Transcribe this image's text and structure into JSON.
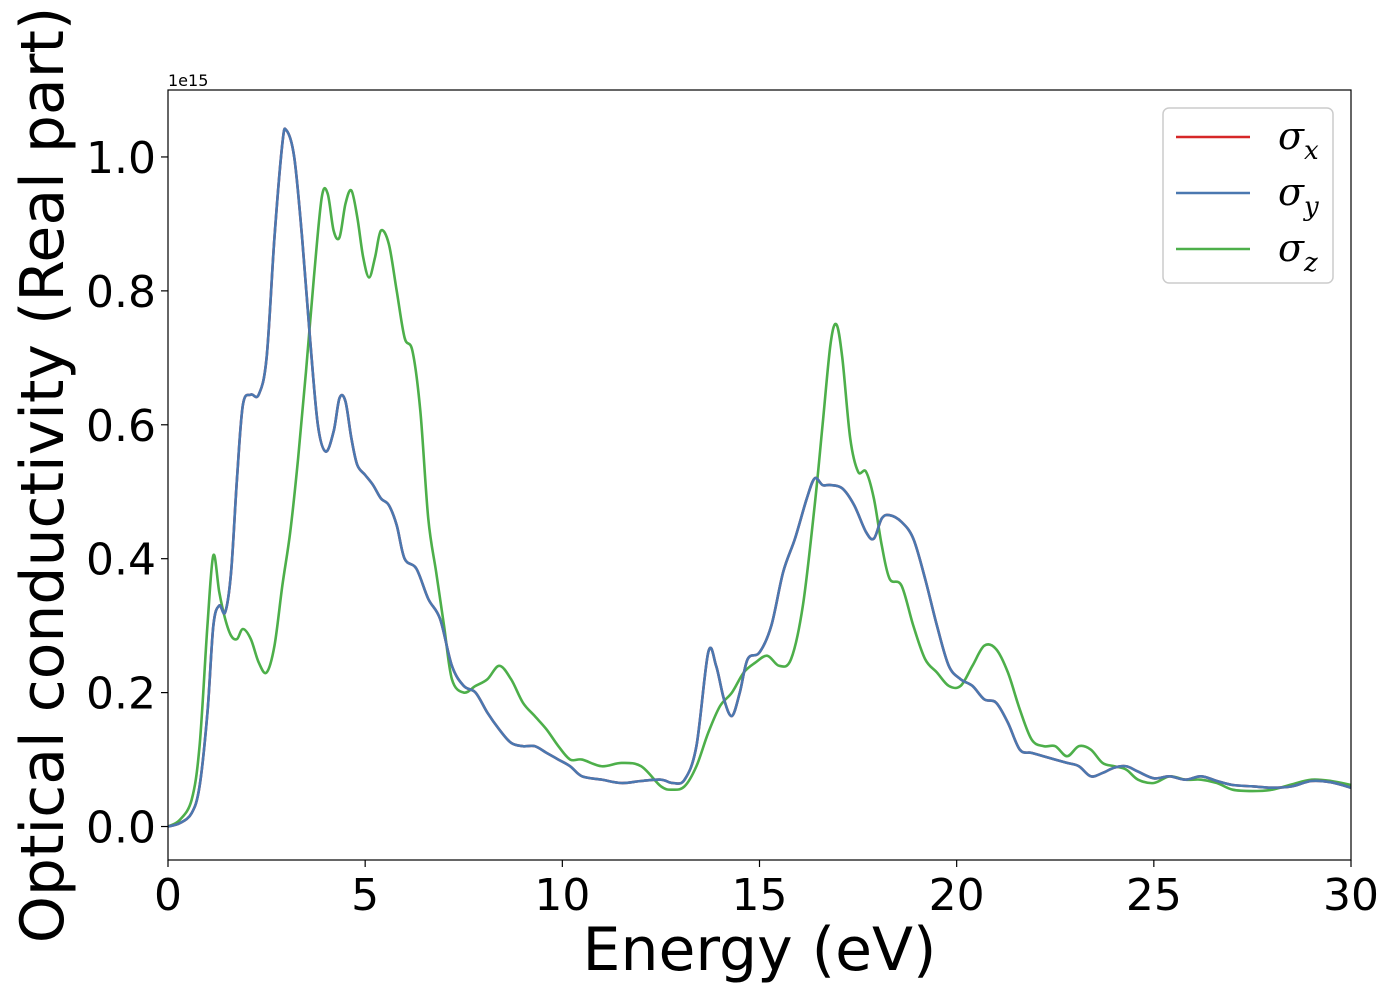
{
  "chart_data": {
    "type": "line",
    "xlabel": "Energy (eV)",
    "ylabel": "Optical conductivity (Real part)",
    "y_offset_label": "1e15",
    "xlim": [
      0,
      30
    ],
    "ylim": [
      -0.05,
      1.1
    ],
    "xticks": [
      0,
      5,
      10,
      15,
      20,
      25,
      30
    ],
    "xtick_labels": [
      "0",
      "5",
      "10",
      "15",
      "20",
      "25",
      "30"
    ],
    "yticks": [
      0.0,
      0.2,
      0.4,
      0.6,
      0.8,
      1.0
    ],
    "ytick_labels": [
      "0.0",
      "0.2",
      "0.4",
      "0.6",
      "0.8",
      "1.0"
    ],
    "grid": false,
    "legend_position": "top-right",
    "series": [
      {
        "name": "σ_x",
        "symbol": "σ",
        "subscript": "x",
        "color": "#d62728",
        "x": [
          0,
          0.3,
          0.6,
          0.8,
          1.0,
          1.15,
          1.3,
          1.45,
          1.6,
          1.75,
          1.9,
          2.1,
          2.3,
          2.5,
          2.7,
          2.9,
          3.0,
          3.2,
          3.4,
          3.6,
          3.8,
          4.0,
          4.2,
          4.35,
          4.5,
          4.65,
          4.8,
          5.0,
          5.2,
          5.4,
          5.6,
          5.8,
          6.0,
          6.3,
          6.6,
          6.9,
          7.2,
          7.5,
          7.8,
          8.1,
          8.4,
          8.7,
          9.0,
          9.3,
          9.6,
          9.9,
          10.2,
          10.5,
          11.0,
          11.5,
          12.0,
          12.5,
          12.8,
          13.1,
          13.4,
          13.7,
          13.9,
          14.1,
          14.3,
          14.5,
          14.7,
          15.0,
          15.3,
          15.6,
          15.9,
          16.2,
          16.4,
          16.6,
          16.8,
          17.1,
          17.4,
          17.7,
          17.9,
          18.1,
          18.3,
          18.6,
          18.9,
          19.2,
          19.5,
          19.8,
          20.1,
          20.4,
          20.7,
          21.0,
          21.3,
          21.6,
          21.9,
          22.2,
          22.5,
          22.8,
          23.1,
          23.4,
          23.7,
          24.0,
          24.3,
          24.6,
          25.0,
          25.4,
          25.8,
          26.2,
          26.6,
          27.0,
          27.5,
          28.0,
          28.5,
          29.0,
          29.5,
          30.0
        ],
        "y": [
          0.0,
          0.005,
          0.02,
          0.06,
          0.17,
          0.3,
          0.33,
          0.32,
          0.38,
          0.52,
          0.63,
          0.645,
          0.645,
          0.7,
          0.88,
          1.02,
          1.04,
          1.0,
          0.88,
          0.73,
          0.6,
          0.56,
          0.59,
          0.64,
          0.635,
          0.58,
          0.54,
          0.525,
          0.51,
          0.49,
          0.48,
          0.45,
          0.4,
          0.385,
          0.34,
          0.31,
          0.24,
          0.21,
          0.2,
          0.17,
          0.145,
          0.125,
          0.12,
          0.12,
          0.11,
          0.1,
          0.09,
          0.075,
          0.07,
          0.065,
          0.068,
          0.07,
          0.065,
          0.07,
          0.12,
          0.26,
          0.24,
          0.19,
          0.165,
          0.2,
          0.25,
          0.26,
          0.3,
          0.38,
          0.43,
          0.49,
          0.52,
          0.51,
          0.51,
          0.505,
          0.48,
          0.44,
          0.43,
          0.46,
          0.465,
          0.455,
          0.43,
          0.37,
          0.3,
          0.24,
          0.22,
          0.21,
          0.19,
          0.185,
          0.155,
          0.115,
          0.11,
          0.105,
          0.1,
          0.095,
          0.09,
          0.075,
          0.08,
          0.088,
          0.09,
          0.082,
          0.072,
          0.075,
          0.07,
          0.075,
          0.068,
          0.062,
          0.06,
          0.058,
          0.06,
          0.068,
          0.066,
          0.058
        ]
      },
      {
        "name": "σ_y",
        "symbol": "σ",
        "subscript": "y",
        "color": "#4a78b0",
        "x": [
          0,
          0.3,
          0.6,
          0.8,
          1.0,
          1.15,
          1.3,
          1.45,
          1.6,
          1.75,
          1.9,
          2.1,
          2.3,
          2.5,
          2.7,
          2.9,
          3.0,
          3.2,
          3.4,
          3.6,
          3.8,
          4.0,
          4.2,
          4.35,
          4.5,
          4.65,
          4.8,
          5.0,
          5.2,
          5.4,
          5.6,
          5.8,
          6.0,
          6.3,
          6.6,
          6.9,
          7.2,
          7.5,
          7.8,
          8.1,
          8.4,
          8.7,
          9.0,
          9.3,
          9.6,
          9.9,
          10.2,
          10.5,
          11.0,
          11.5,
          12.0,
          12.5,
          12.8,
          13.1,
          13.4,
          13.7,
          13.9,
          14.1,
          14.3,
          14.5,
          14.7,
          15.0,
          15.3,
          15.6,
          15.9,
          16.2,
          16.4,
          16.6,
          16.8,
          17.1,
          17.4,
          17.7,
          17.9,
          18.1,
          18.3,
          18.6,
          18.9,
          19.2,
          19.5,
          19.8,
          20.1,
          20.4,
          20.7,
          21.0,
          21.3,
          21.6,
          21.9,
          22.2,
          22.5,
          22.8,
          23.1,
          23.4,
          23.7,
          24.0,
          24.3,
          24.6,
          25.0,
          25.4,
          25.8,
          26.2,
          26.6,
          27.0,
          27.5,
          28.0,
          28.5,
          29.0,
          29.5,
          30.0
        ],
        "y": [
          0.0,
          0.005,
          0.02,
          0.06,
          0.17,
          0.3,
          0.33,
          0.32,
          0.38,
          0.52,
          0.63,
          0.645,
          0.645,
          0.7,
          0.88,
          1.02,
          1.04,
          1.0,
          0.88,
          0.73,
          0.6,
          0.56,
          0.59,
          0.64,
          0.635,
          0.58,
          0.54,
          0.525,
          0.51,
          0.49,
          0.48,
          0.45,
          0.4,
          0.385,
          0.34,
          0.31,
          0.24,
          0.21,
          0.2,
          0.17,
          0.145,
          0.125,
          0.12,
          0.12,
          0.11,
          0.1,
          0.09,
          0.075,
          0.07,
          0.065,
          0.068,
          0.07,
          0.065,
          0.07,
          0.12,
          0.26,
          0.24,
          0.19,
          0.165,
          0.2,
          0.25,
          0.26,
          0.3,
          0.38,
          0.43,
          0.49,
          0.52,
          0.51,
          0.51,
          0.505,
          0.48,
          0.44,
          0.43,
          0.46,
          0.465,
          0.455,
          0.43,
          0.37,
          0.3,
          0.24,
          0.22,
          0.21,
          0.19,
          0.185,
          0.155,
          0.115,
          0.11,
          0.105,
          0.1,
          0.095,
          0.09,
          0.075,
          0.08,
          0.088,
          0.09,
          0.082,
          0.072,
          0.075,
          0.07,
          0.075,
          0.068,
          0.062,
          0.06,
          0.058,
          0.06,
          0.068,
          0.066,
          0.058
        ]
      },
      {
        "name": "σ_z",
        "symbol": "σ",
        "subscript": "z",
        "color": "#4daf4a",
        "x": [
          0,
          0.3,
          0.6,
          0.8,
          1.0,
          1.15,
          1.3,
          1.45,
          1.6,
          1.75,
          1.9,
          2.1,
          2.3,
          2.5,
          2.7,
          2.9,
          3.1,
          3.3,
          3.5,
          3.7,
          3.9,
          4.05,
          4.2,
          4.35,
          4.5,
          4.65,
          4.8,
          4.95,
          5.1,
          5.25,
          5.4,
          5.6,
          5.8,
          6.0,
          6.2,
          6.4,
          6.6,
          6.8,
          7.0,
          7.2,
          7.5,
          7.8,
          8.1,
          8.4,
          8.7,
          9.0,
          9.3,
          9.6,
          9.9,
          10.2,
          10.5,
          11.0,
          11.5,
          12.0,
          12.5,
          12.8,
          13.1,
          13.4,
          13.7,
          14.0,
          14.3,
          14.6,
          14.9,
          15.2,
          15.5,
          15.8,
          16.1,
          16.4,
          16.6,
          16.8,
          16.95,
          17.1,
          17.3,
          17.5,
          17.7,
          17.9,
          18.1,
          18.3,
          18.6,
          18.9,
          19.2,
          19.5,
          19.8,
          20.1,
          20.4,
          20.7,
          21.0,
          21.3,
          21.6,
          21.9,
          22.2,
          22.5,
          22.8,
          23.1,
          23.4,
          23.7,
          24.0,
          24.3,
          24.6,
          25.0,
          25.4,
          25.8,
          26.2,
          26.6,
          27.0,
          27.5,
          28.0,
          28.5,
          29.0,
          29.5,
          30.0
        ],
        "y": [
          0.0,
          0.01,
          0.04,
          0.12,
          0.3,
          0.405,
          0.35,
          0.31,
          0.285,
          0.28,
          0.295,
          0.28,
          0.245,
          0.23,
          0.27,
          0.36,
          0.44,
          0.55,
          0.68,
          0.82,
          0.94,
          0.945,
          0.89,
          0.88,
          0.93,
          0.95,
          0.91,
          0.85,
          0.82,
          0.85,
          0.89,
          0.87,
          0.8,
          0.73,
          0.71,
          0.62,
          0.46,
          0.38,
          0.3,
          0.22,
          0.2,
          0.21,
          0.22,
          0.24,
          0.22,
          0.185,
          0.165,
          0.145,
          0.12,
          0.1,
          0.1,
          0.09,
          0.095,
          0.09,
          0.06,
          0.055,
          0.06,
          0.09,
          0.14,
          0.18,
          0.2,
          0.23,
          0.245,
          0.255,
          0.24,
          0.25,
          0.33,
          0.48,
          0.6,
          0.72,
          0.75,
          0.7,
          0.58,
          0.53,
          0.53,
          0.49,
          0.42,
          0.37,
          0.36,
          0.3,
          0.25,
          0.23,
          0.21,
          0.21,
          0.24,
          0.27,
          0.265,
          0.23,
          0.175,
          0.13,
          0.12,
          0.12,
          0.105,
          0.12,
          0.115,
          0.095,
          0.09,
          0.085,
          0.07,
          0.065,
          0.075,
          0.07,
          0.07,
          0.065,
          0.055,
          0.053,
          0.055,
          0.063,
          0.07,
          0.068,
          0.062
        ]
      }
    ]
  }
}
